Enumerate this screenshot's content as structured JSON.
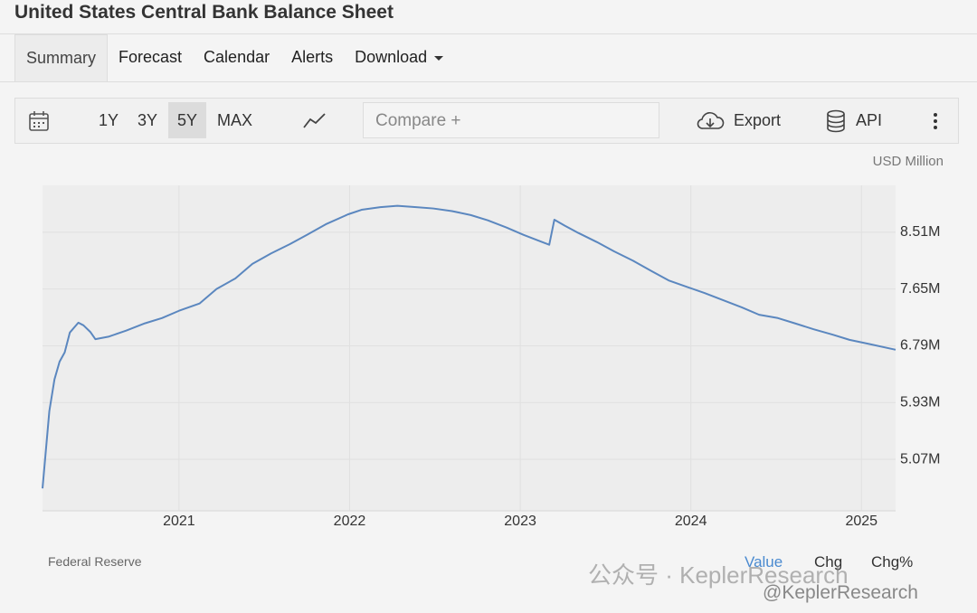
{
  "header": {
    "title": "United States Central Bank Balance Sheet"
  },
  "tabs": [
    "Summary",
    "Forecast",
    "Calendar",
    "Alerts",
    "Download"
  ],
  "toolbar": {
    "ranges": [
      "1Y",
      "3Y",
      "5Y",
      "MAX"
    ],
    "compare": "Compare +",
    "export": "Export",
    "api": "API"
  },
  "footer": {
    "buttons": [
      "Value",
      "Chg",
      "Chg%"
    ]
  },
  "watermark": [
    "公众号 · KeplerResearch",
    "@KeplerResearch"
  ],
  "chart_data": {
    "type": "line",
    "y_axis_label": "USD Million",
    "source": "Federal Reserve",
    "x": [
      2020.2,
      2020.24,
      2020.27,
      2020.3,
      2020.33,
      2020.36,
      2020.41,
      2020.44,
      2020.48,
      2020.51,
      2020.59,
      2020.69,
      2020.8,
      2020.9,
      2021.0,
      2021.12,
      2021.22,
      2021.33,
      2021.43,
      2021.54,
      2021.65,
      2021.75,
      2021.86,
      2021.99,
      2022.07,
      2022.18,
      2022.28,
      2022.39,
      2022.49,
      2022.6,
      2022.71,
      2022.81,
      2022.92,
      2023.02,
      2023.13,
      2023.17,
      2023.2,
      2023.26,
      2023.34,
      2023.45,
      2023.55,
      2023.66,
      2023.77,
      2023.87,
      2023.99,
      2024.08,
      2024.19,
      2024.3,
      2024.4,
      2024.51,
      2024.61,
      2024.72,
      2024.83,
      2024.93,
      2025.04,
      2025.2
    ],
    "series": [
      {
        "name": "Balance Sheet",
        "color": "#5b87bf",
        "values": [
          4630000,
          5800000,
          6280000,
          6550000,
          6690000,
          6990000,
          7140000,
          7100000,
          7000000,
          6890000,
          6930000,
          7020000,
          7130000,
          7210000,
          7320000,
          7430000,
          7650000,
          7810000,
          8030000,
          8190000,
          8330000,
          8470000,
          8630000,
          8780000,
          8850000,
          8890000,
          8910000,
          8890000,
          8870000,
          8830000,
          8770000,
          8690000,
          8580000,
          8470000,
          8360000,
          8320000,
          8700000,
          8610000,
          8500000,
          8360000,
          8220000,
          8080000,
          7920000,
          7780000,
          7670000,
          7590000,
          7480000,
          7370000,
          7260000,
          7210000,
          7130000,
          7040000,
          6960000,
          6880000,
          6820000,
          6730000
        ]
      }
    ],
    "xlim": [
      2020.2,
      2025.2
    ],
    "xticks": [
      2021,
      2022,
      2023,
      2024,
      2025
    ],
    "ylim": [
      4290000,
      9220000
    ],
    "yticks": [
      {
        "value": 5070000,
        "label": "5.07M"
      },
      {
        "value": 5930000,
        "label": "5.93M"
      },
      {
        "value": 6790000,
        "label": "6.79M"
      },
      {
        "value": 7650000,
        "label": "7.65M"
      },
      {
        "value": 8510000,
        "label": "8.51M"
      }
    ],
    "grid": true
  }
}
